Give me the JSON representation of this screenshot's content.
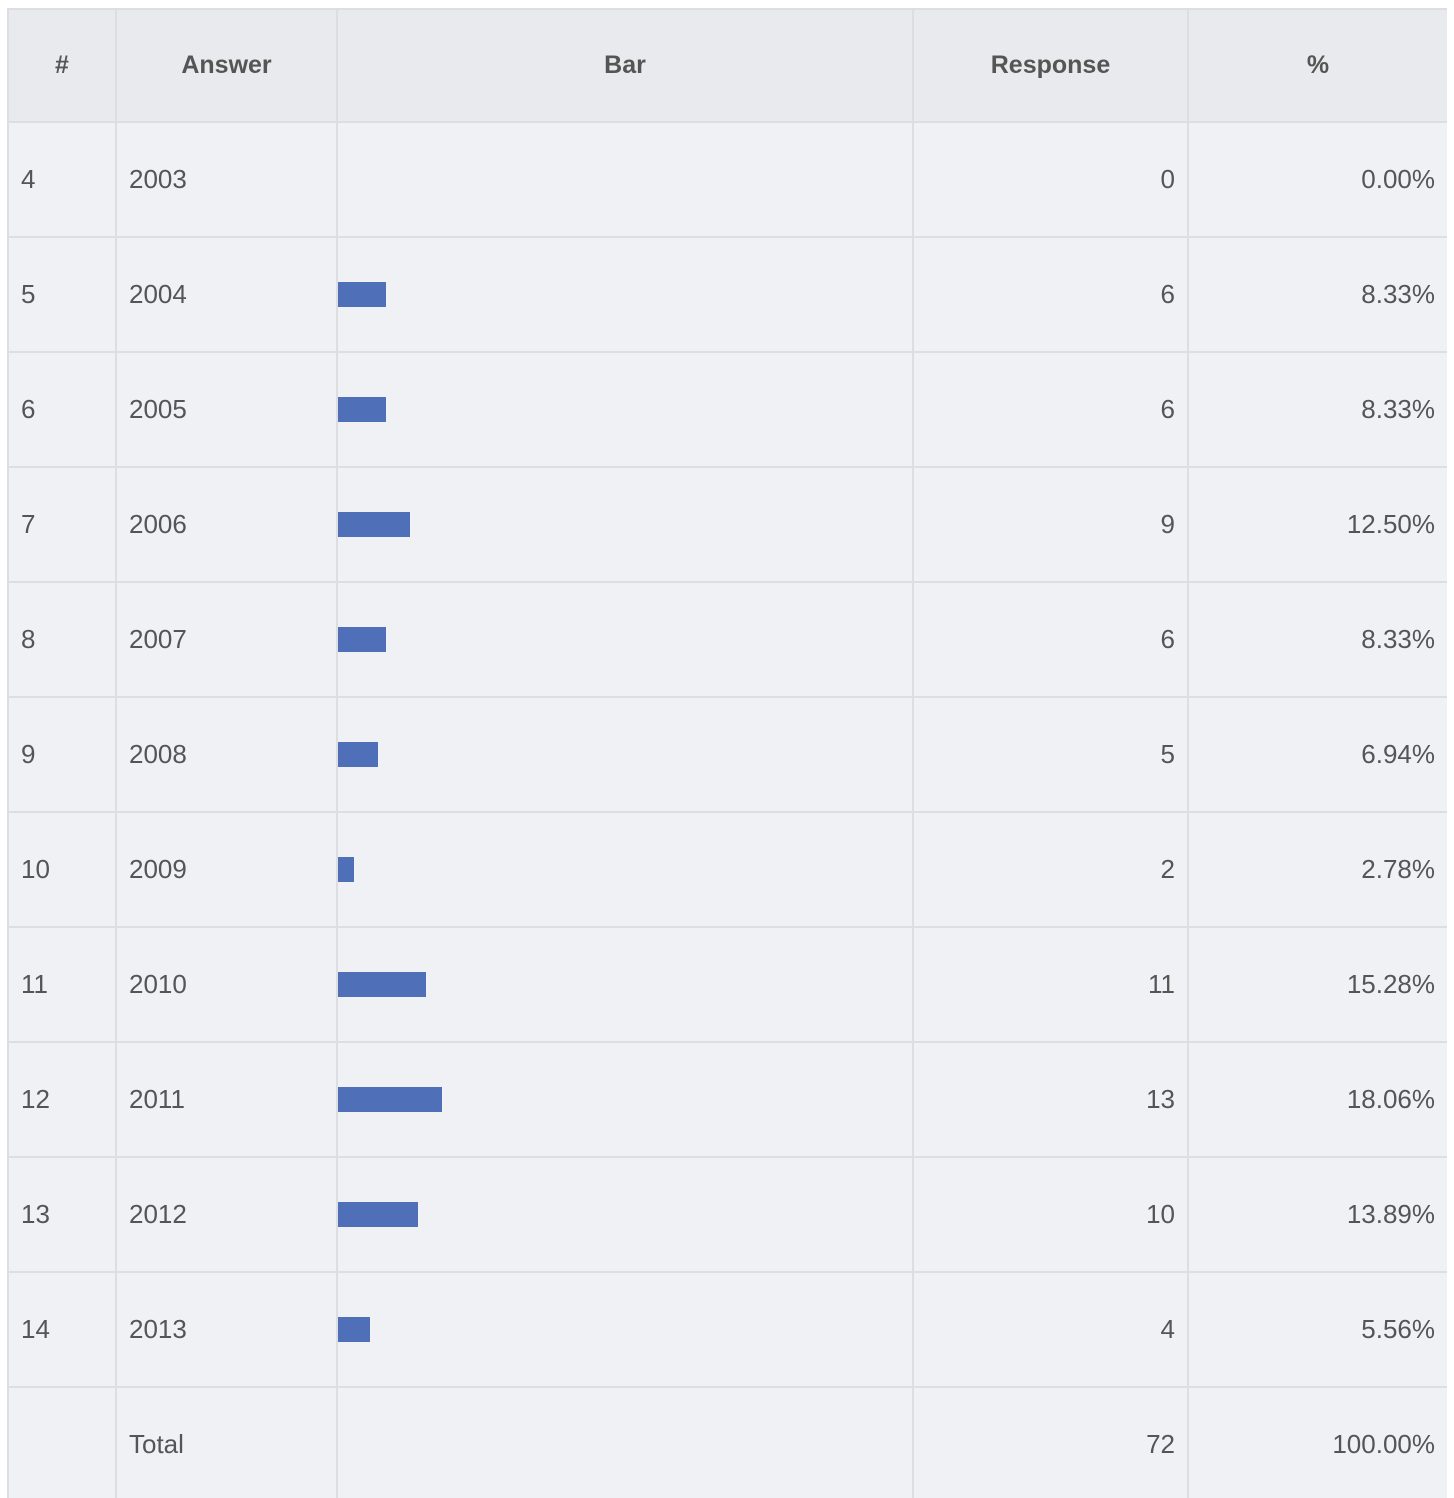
{
  "table": {
    "headers": [
      "#",
      "Answer",
      "Bar",
      "Response",
      "%"
    ],
    "rows": [
      {
        "number": "4",
        "answer": "2003",
        "response": 0,
        "percent": {
          "value": 0,
          "label": "0.00%"
        }
      },
      {
        "number": "5",
        "answer": "2004",
        "response": 6,
        "percent": {
          "value": 8.33,
          "label": "8.33%"
        }
      },
      {
        "number": "6",
        "answer": "2005",
        "response": 6,
        "percent": {
          "value": 8.33,
          "label": "8.33%"
        }
      },
      {
        "number": "7",
        "answer": "2006",
        "response": 9,
        "percent": {
          "value": 12.5,
          "label": "12.50%"
        }
      },
      {
        "number": "8",
        "answer": "2007",
        "response": 6,
        "percent": {
          "value": 8.33,
          "label": "8.33%"
        }
      },
      {
        "number": "9",
        "answer": "2008",
        "response": 5,
        "percent": {
          "value": 6.94,
          "label": "6.94%"
        }
      },
      {
        "number": "10",
        "answer": "2009",
        "response": 2,
        "percent": {
          "value": 2.78,
          "label": "2.78%"
        }
      },
      {
        "number": "11",
        "answer": "2010",
        "response": 11,
        "percent": {
          "value": 15.28,
          "label": "15.28%"
        }
      },
      {
        "number": "12",
        "answer": "2011",
        "response": 13,
        "percent": {
          "value": 18.06,
          "label": "18.06%"
        }
      },
      {
        "number": "13",
        "answer": "2012",
        "response": 10,
        "percent": {
          "value": 13.89,
          "label": "13.89%"
        }
      },
      {
        "number": "14",
        "answer": "2013",
        "response": 4,
        "percent": {
          "value": 5.56,
          "label": "5.56%"
        }
      }
    ],
    "total": {
      "label": "Total",
      "response": 72,
      "percent": "100.00%"
    }
  }
}
